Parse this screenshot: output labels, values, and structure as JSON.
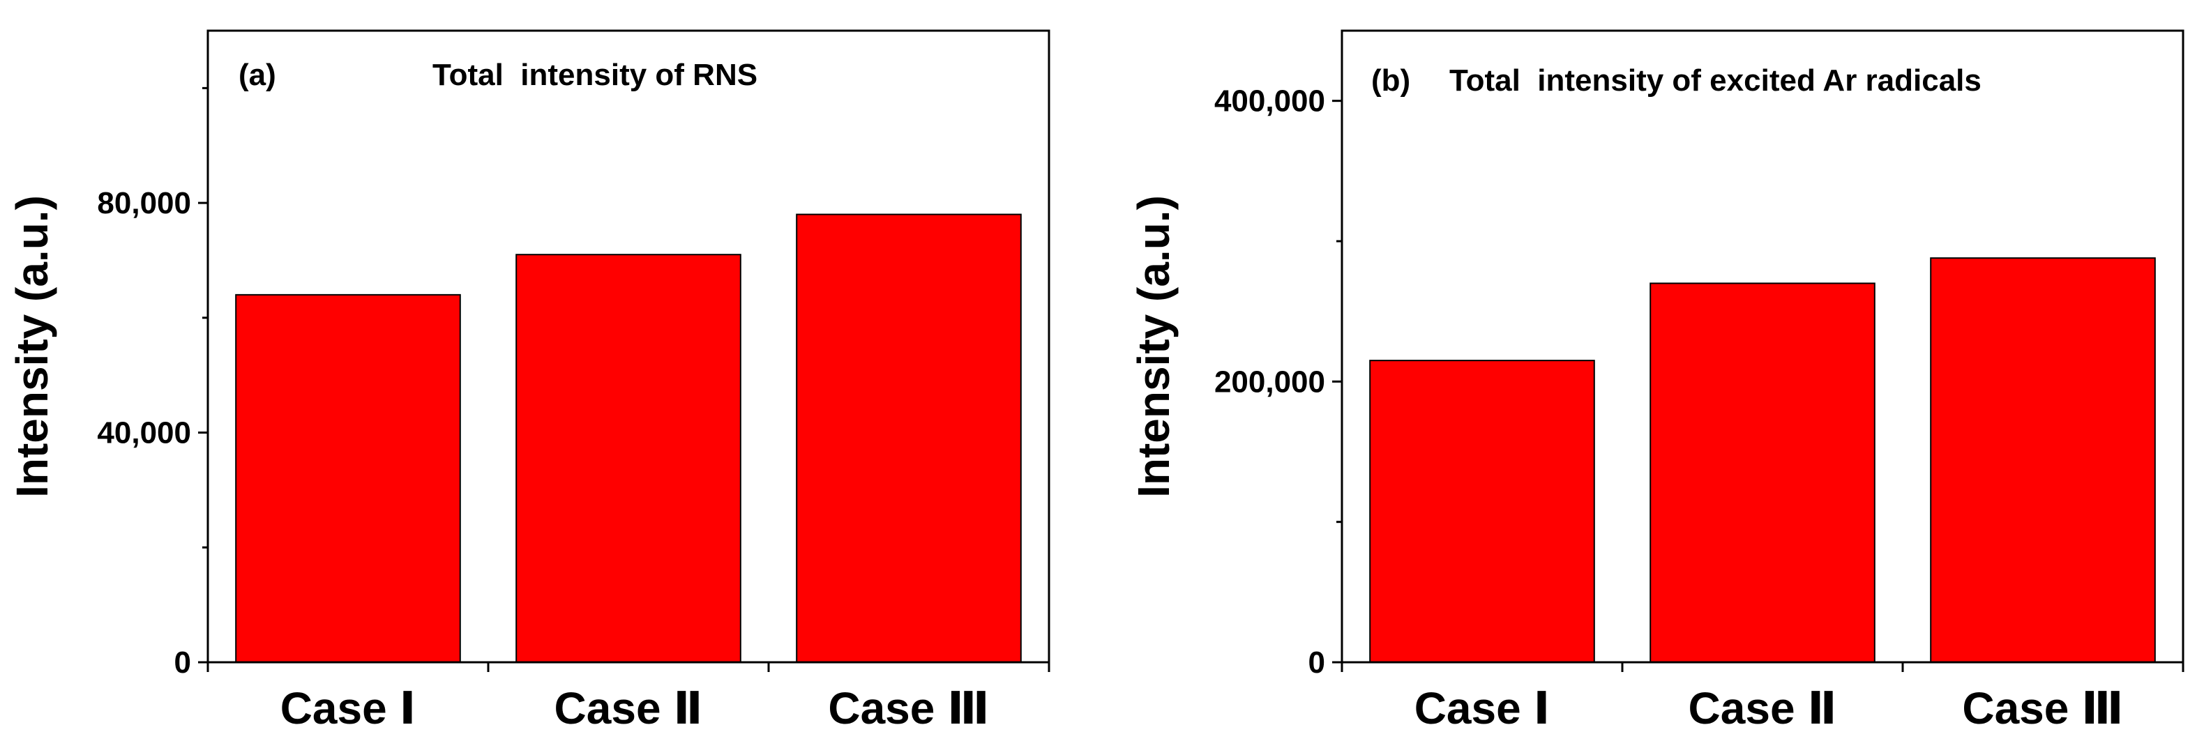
{
  "chart_data": [
    {
      "type": "bar",
      "panel_label": "(a)",
      "title": "Total  intensity of RNS",
      "xlabel": "",
      "ylabel": "Intensity (a.u.)",
      "categories": [
        "Case Ⅰ",
        "Case Ⅱ",
        "Case Ⅲ"
      ],
      "values": [
        64000,
        71000,
        78000
      ],
      "ylim": [
        0,
        110000
      ],
      "yticks": [
        {
          "value": 0,
          "label": "0"
        },
        {
          "value": 40000,
          "label": "40,000"
        },
        {
          "value": 80000,
          "label": "80,000"
        }
      ],
      "yminor_ticks": [
        20000,
        60000,
        100000
      ],
      "bar_color": "#ff0000",
      "grid": false,
      "legend": "none"
    },
    {
      "type": "bar",
      "panel_label": "(b)",
      "title": "Total  intensity of excited Ar radicals",
      "xlabel": "",
      "ylabel": "Intensity (a.u.)",
      "categories": [
        "Case Ⅰ",
        "Case Ⅱ",
        "Case Ⅲ"
      ],
      "values": [
        215000,
        270000,
        288000
      ],
      "ylim": [
        0,
        450000
      ],
      "yticks": [
        {
          "value": 0,
          "label": "0"
        },
        {
          "value": 200000,
          "label": "200,000"
        },
        {
          "value": 400000,
          "label": "400,000"
        }
      ],
      "yminor_ticks": [
        100000,
        300000
      ],
      "bar_color": "#ff0000",
      "grid": false,
      "legend": "none"
    }
  ]
}
